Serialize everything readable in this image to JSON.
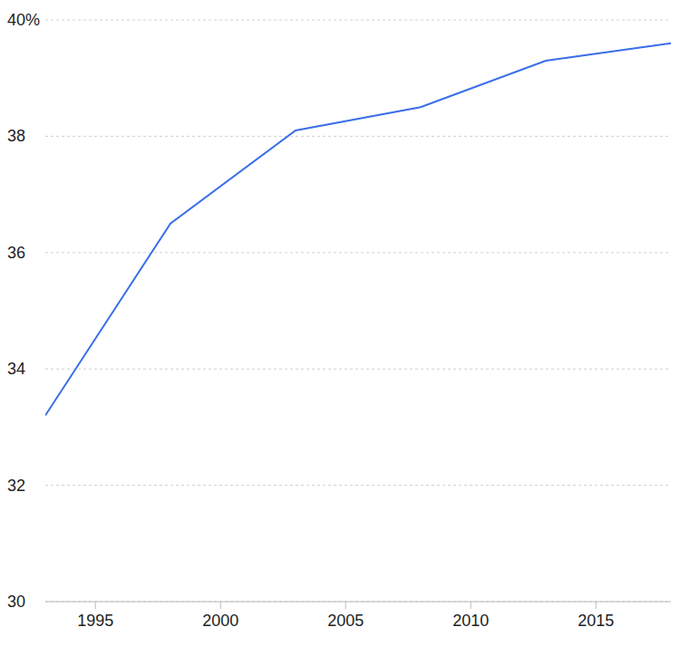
{
  "chart_data": {
    "type": "line",
    "x": [
      1993,
      1998,
      2003,
      2008,
      2013,
      2018
    ],
    "values": [
      33.2,
      36.5,
      38.1,
      38.5,
      39.3,
      39.6
    ],
    "color": "#3a6ee8",
    "xlim": [
      1993,
      2018
    ],
    "xticks": [
      1995,
      2000,
      2005,
      2010,
      2015
    ],
    "ylim": [
      30,
      40
    ],
    "yticks": [
      30,
      32,
      34,
      36,
      38,
      {
        "value": 40,
        "label": "40%"
      }
    ],
    "grid": true
  }
}
